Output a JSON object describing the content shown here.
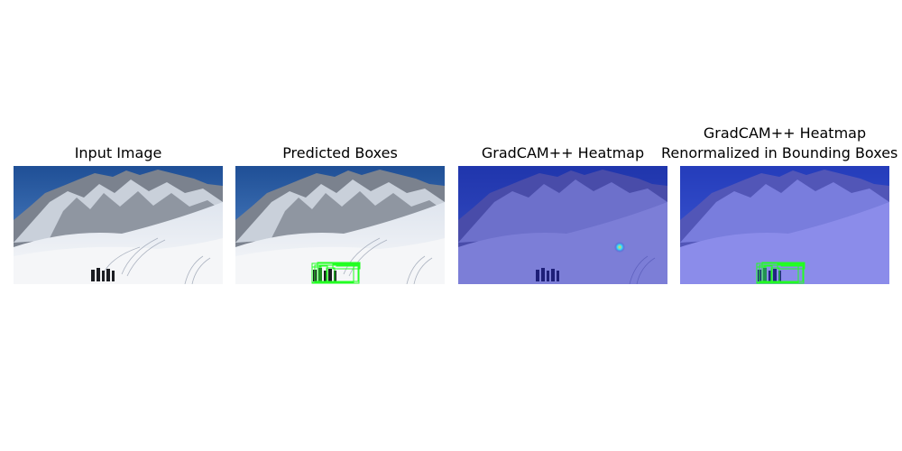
{
  "figure": {
    "panels": [
      {
        "title_line1": "Input Image"
      },
      {
        "title_line1": "Predicted Boxes"
      },
      {
        "title_line1": "GradCAM++ Heatmap"
      },
      {
        "title_line1": "GradCAM++ Heatmap",
        "title_line2": "Renormalized in Bounding Boxes"
      }
    ]
  },
  "colors": {
    "sky": "#2f65ad",
    "snow": "#f1f3f6",
    "rock": "#6d7480",
    "box": "#22ff22",
    "heat_overlay": "#3030c8",
    "heat_spot": "#ffd040"
  }
}
